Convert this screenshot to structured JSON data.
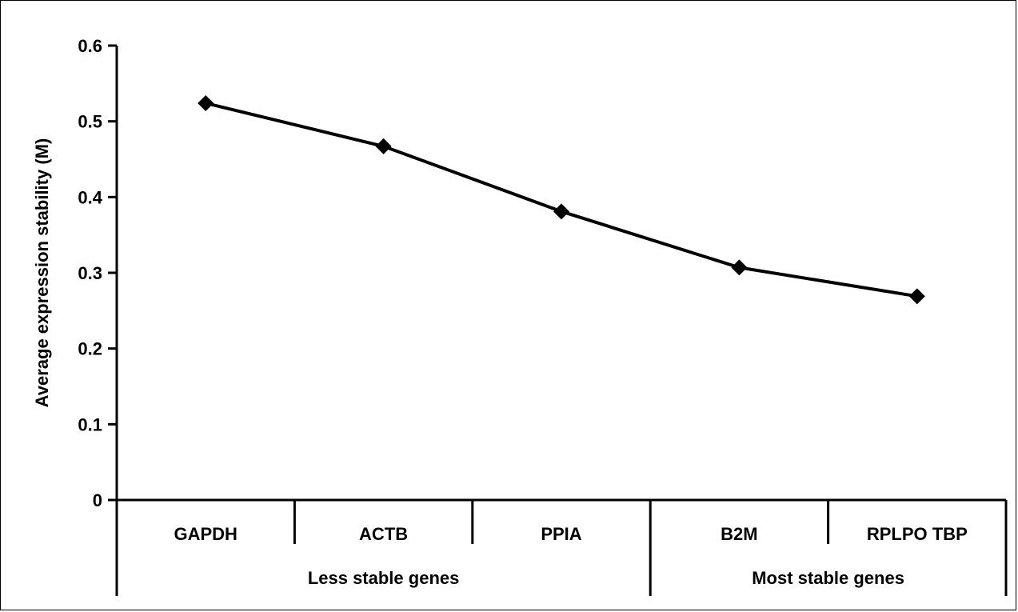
{
  "chart_data": {
    "type": "line",
    "ylabel": "Average expression stability (M)",
    "ylim": [
      0,
      0.6
    ],
    "yticks": [
      "0",
      "0.1",
      "0.2",
      "0.3",
      "0.4",
      "0.5",
      "0.6"
    ],
    "categories": [
      "GAPDH",
      "ACTB",
      "PPIA",
      "B2M",
      "RPLPO TBP"
    ],
    "category_groups": [
      {
        "label": "Less stable genes",
        "span": 3
      },
      {
        "label": "Most stable genes",
        "span": 2
      }
    ],
    "series": [
      {
        "values": [
          0.524,
          0.467,
          0.381,
          0.307,
          0.269
        ]
      }
    ],
    "marker": "diamond",
    "line_color": "#000000",
    "grid": false,
    "legend": "none"
  }
}
